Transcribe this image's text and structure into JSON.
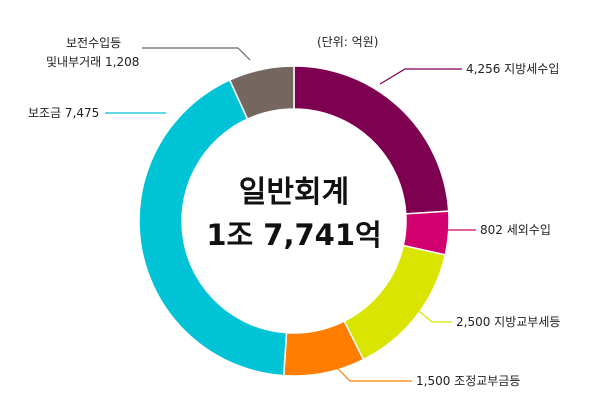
{
  "chart_data": {
    "type": "pie",
    "donut": true,
    "unit_label": "(단위: 억원)",
    "center_title": "일반회계",
    "center_value": "1조 7,741억",
    "slices": [
      {
        "label": "4,256 지방세수입",
        "value": 4256,
        "color": "#7d0051"
      },
      {
        "label": "802 세외수입",
        "value": 802,
        "color": "#d2006e"
      },
      {
        "label": "2,500 지방교부세등",
        "value": 2500,
        "color": "#d9e500"
      },
      {
        "label": "1,500 조정교부금등",
        "value": 1500,
        "color": "#ff7d00"
      },
      {
        "label": "보조금 7,475",
        "value": 7475,
        "color": "#00c4d6"
      },
      {
        "label_lines": [
          "보전수입등",
          "및내부거래 1,208"
        ],
        "value": 1208,
        "color": "#756660"
      }
    ]
  }
}
